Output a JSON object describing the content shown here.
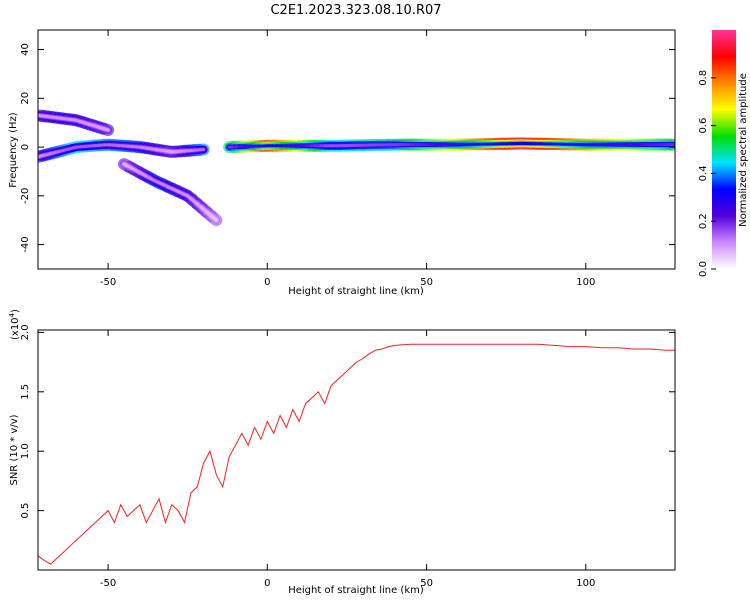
{
  "figure": {
    "title": "C2E1.2023.323.08.10.R07"
  },
  "chart_data": [
    {
      "type": "heatmap",
      "xlabel": "Height of straight line (km)",
      "ylabel": "Frequency (Hz)",
      "xlim": [
        -72,
        128
      ],
      "ylim": [
        -50,
        48
      ],
      "xticks": [
        -50,
        0,
        50,
        100
      ],
      "yticks": [
        -40,
        -20,
        0,
        20,
        40
      ],
      "colorbar": {
        "label": "Normalized spectral amplitude",
        "range": [
          0,
          1
        ],
        "ticks": [
          "0.0",
          "0.2",
          "0.4",
          "0.6",
          "0.8"
        ],
        "colors": [
          "#ffffff",
          "#cc88ff",
          "#5500dd",
          "#0000ff",
          "#00e5ff",
          "#00dd00",
          "#ffff00",
          "#ff8800",
          "#ff0000",
          "#ff3399"
        ]
      },
      "ridges": [
        {
          "x": [
            -12,
            0,
            20,
            40,
            60,
            80,
            100,
            128
          ],
          "y": [
            0,
            0.5,
            0.5,
            1,
            1,
            1.5,
            1,
            1
          ],
          "amplitude": [
            0.5,
            0.85,
            0.45,
            0.5,
            0.7,
            0.95,
            0.75,
            0.55
          ]
        },
        {
          "x": [
            -72,
            -60,
            -50,
            -40,
            -30,
            -20
          ],
          "y": [
            -4,
            0,
            1,
            0,
            -2,
            -1
          ],
          "amplitude": [
            0.3,
            0.45,
            0.4,
            0.35,
            0.25,
            0.4
          ]
        },
        {
          "x": [
            -72,
            -60,
            -50
          ],
          "y": [
            13,
            11,
            7
          ],
          "amplitude": [
            0.3,
            0.3,
            0.25
          ]
        },
        {
          "x": [
            -45,
            -35,
            -25,
            -16
          ],
          "y": [
            -7,
            -14,
            -20,
            -30
          ],
          "amplitude": [
            0.2,
            0.35,
            0.3,
            0.15
          ]
        }
      ]
    },
    {
      "type": "line",
      "xlabel": "Height of straight line (km)",
      "ylabel": "SNR (10 * v/v)",
      "multiplier": "(x10",
      "multiplier_exp": "4",
      "multiplier_close": ")",
      "xlim": [
        -72,
        128
      ],
      "ylim": [
        0,
        2.02
      ],
      "xticks": [
        -50,
        0,
        50,
        100
      ],
      "yticks": [
        0.5,
        1.0,
        1.5,
        2.0
      ],
      "color": "#ee2222",
      "series": [
        {
          "x": [
            -72,
            -70,
            -68,
            -66,
            -64,
            -62,
            -60,
            -58,
            -56,
            -54,
            -52,
            -50,
            -48,
            -46,
            -44,
            -42,
            -40,
            -38,
            -36,
            -34,
            -32,
            -30,
            -28,
            -26,
            -24,
            -22,
            -20,
            -18,
            -16,
            -14,
            -12,
            -10,
            -8,
            -6,
            -4,
            -2,
            0,
            2,
            4,
            6,
            8,
            10,
            12,
            14,
            16,
            18,
            20,
            22,
            24,
            26,
            28,
            30,
            32,
            34,
            36,
            38,
            40,
            45,
            50,
            55,
            60,
            65,
            70,
            75,
            80,
            85,
            90,
            95,
            100,
            105,
            110,
            115,
            120,
            125,
            128
          ],
          "y": [
            0.12,
            0.08,
            0.05,
            0.1,
            0.15,
            0.2,
            0.25,
            0.3,
            0.35,
            0.4,
            0.45,
            0.5,
            0.4,
            0.55,
            0.45,
            0.5,
            0.55,
            0.4,
            0.5,
            0.6,
            0.4,
            0.55,
            0.5,
            0.4,
            0.65,
            0.7,
            0.9,
            1.0,
            0.8,
            0.7,
            0.95,
            1.05,
            1.15,
            1.05,
            1.2,
            1.1,
            1.25,
            1.15,
            1.3,
            1.2,
            1.35,
            1.25,
            1.4,
            1.45,
            1.5,
            1.4,
            1.55,
            1.6,
            1.65,
            1.7,
            1.75,
            1.78,
            1.82,
            1.85,
            1.86,
            1.88,
            1.89,
            1.9,
            1.9,
            1.9,
            1.9,
            1.9,
            1.9,
            1.9,
            1.9,
            1.9,
            1.89,
            1.88,
            1.88,
            1.87,
            1.87,
            1.86,
            1.86,
            1.85,
            1.85
          ]
        }
      ]
    }
  ]
}
